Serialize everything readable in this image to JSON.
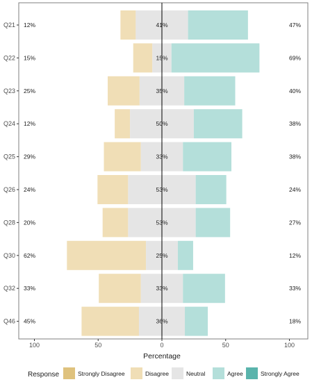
{
  "chart_data": {
    "type": "bar",
    "orientation": "horizontal-diverging-stacked",
    "title": "",
    "xlabel": "Percentage",
    "ylabel": "",
    "xlim": [
      -105,
      105
    ],
    "x_ticks": [
      {
        "value": -100,
        "label": "100"
      },
      {
        "value": -50,
        "label": "50"
      },
      {
        "value": 0,
        "label": "0"
      },
      {
        "value": 50,
        "label": "50"
      },
      {
        "value": 100,
        "label": "100"
      }
    ],
    "grid": false,
    "legend_position": "bottom",
    "legend_title": "Response",
    "categories": [
      "Q21",
      "Q22",
      "Q23",
      "Q24",
      "Q25",
      "Q26",
      "Q28",
      "Q30",
      "Q32",
      "Q46"
    ],
    "series": [
      {
        "name": "Strongly Disagree",
        "color": "#dfc27d",
        "values": [
          0,
          0,
          0,
          0,
          0,
          0,
          0,
          0,
          0,
          0
        ]
      },
      {
        "name": "Disagree",
        "color": "#f0deb6",
        "values": [
          12,
          15,
          25,
          12,
          29,
          24,
          20,
          62,
          33,
          45
        ]
      },
      {
        "name": "Neutral",
        "color": "#e5e5e5",
        "values": [
          41,
          15,
          35,
          50,
          33,
          53,
          53,
          25,
          33,
          36
        ]
      },
      {
        "name": "Agree",
        "color": "#b4dfda",
        "values": [
          47,
          69,
          40,
          38,
          38,
          24,
          27,
          12,
          33,
          18
        ]
      },
      {
        "name": "Strongly Agree",
        "color": "#5ab4ac",
        "values": [
          0,
          0,
          0,
          0,
          0,
          0,
          0,
          0,
          0,
          0
        ]
      }
    ],
    "left_labels": [
      "12%",
      "15%",
      "25%",
      "12%",
      "29%",
      "24%",
      "20%",
      "62%",
      "33%",
      "45%"
    ],
    "center_labels": [
      "41%",
      "15%",
      "35%",
      "50%",
      "33%",
      "53%",
      "53%",
      "25%",
      "33%",
      "36%"
    ],
    "right_labels": [
      "47%",
      "69%",
      "40%",
      "38%",
      "38%",
      "24%",
      "27%",
      "12%",
      "33%",
      "18%"
    ]
  }
}
